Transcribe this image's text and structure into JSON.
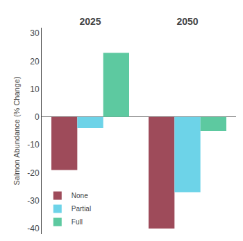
{
  "chart_data": {
    "type": "bar",
    "categories": [
      "2025",
      "2050"
    ],
    "series": [
      {
        "name": "None",
        "color": "#9E4B5A",
        "values": [
          -19,
          -40
        ]
      },
      {
        "name": "Partial",
        "color": "#6DD3E8",
        "values": [
          -4,
          -27
        ]
      },
      {
        "name": "Full",
        "color": "#5DC9A0",
        "values": [
          23,
          -5
        ]
      }
    ],
    "ylabel": "Salmon Abundance (% Change)",
    "ylim": [
      -42,
      32
    ],
    "yticks": [
      -40,
      -30,
      -20,
      -10,
      0,
      10,
      20,
      30
    ],
    "grid": false,
    "legend": "lower left"
  }
}
